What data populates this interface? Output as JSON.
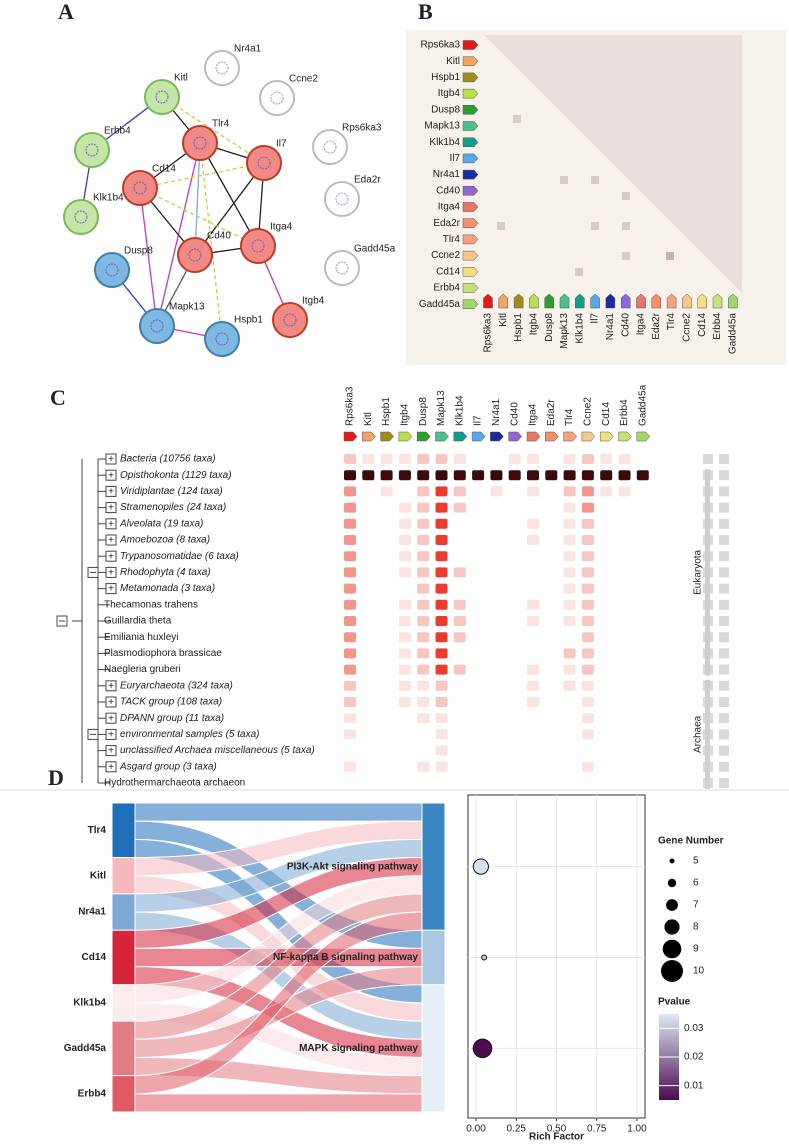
{
  "panels": {
    "A": "A",
    "B": "B",
    "C": "C",
    "D": "D"
  },
  "network": {
    "nodes": [
      {
        "label": "Nr4a1",
        "cluster": "none"
      },
      {
        "label": "Ccne2",
        "cluster": "none"
      },
      {
        "label": "Kitl",
        "cluster": "green"
      },
      {
        "label": "Tlr4",
        "cluster": "red"
      },
      {
        "label": "Il7",
        "cluster": "red"
      },
      {
        "label": "Rps6ka3",
        "cluster": "none"
      },
      {
        "label": "Erbb4",
        "cluster": "green"
      },
      {
        "label": "Cd14",
        "cluster": "red"
      },
      {
        "label": "Eda2r",
        "cluster": "none"
      },
      {
        "label": "Klk1b4",
        "cluster": "green"
      },
      {
        "label": "Cd40",
        "cluster": "red"
      },
      {
        "label": "Itga4",
        "cluster": "red"
      },
      {
        "label": "Gadd45a",
        "cluster": "none"
      },
      {
        "label": "Dusp8",
        "cluster": "blue"
      },
      {
        "label": "Mapk13",
        "cluster": "blue"
      },
      {
        "label": "Hspb1",
        "cluster": "blue"
      },
      {
        "label": "Itgb4",
        "cluster": "red"
      }
    ]
  },
  "genes": [
    {
      "name": "Rps6ka3",
      "color": "#e31a1c"
    },
    {
      "name": "Kitl",
      "color": "#f4a460"
    },
    {
      "name": "Hspb1",
      "color": "#a08c1e"
    },
    {
      "name": "Itgb4",
      "color": "#b8e04a"
    },
    {
      "name": "Dusp8",
      "color": "#2ca02c"
    },
    {
      "name": "Mapk13",
      "color": "#4ac18a"
    },
    {
      "name": "Klk1b4",
      "color": "#159a8c"
    },
    {
      "name": "Il7",
      "color": "#57a8e8"
    },
    {
      "name": "Nr4a1",
      "color": "#1a2c9e"
    },
    {
      "name": "Cd40",
      "color": "#8f66d6"
    },
    {
      "name": "Itga4",
      "color": "#e8746a"
    },
    {
      "name": "Eda2r",
      "color": "#f5906a"
    },
    {
      "name": "Tlr4",
      "color": "#f7a27e"
    },
    {
      "name": "Ccne2",
      "color": "#f8c888"
    },
    {
      "name": "Cd14",
      "color": "#f3df80"
    },
    {
      "name": "Erbb4",
      "color": "#c6e07a"
    },
    {
      "name": "Gadd45a",
      "color": "#9ed86a"
    }
  ],
  "profile": {
    "taxa": [
      {
        "name": "Bacteria (10756 taxa)",
        "group": true
      },
      {
        "name": "Opisthokonta (1129 taxa)",
        "group": true
      },
      {
        "name": "Viridiplantae (124 taxa)",
        "group": true
      },
      {
        "name": "Stramenopiles (24 taxa)",
        "group": true
      },
      {
        "name": "Alveolata (19 taxa)",
        "group": true
      },
      {
        "name": "Amoebozoa (8 taxa)",
        "group": true
      },
      {
        "name": "Trypanosomatidae (6 taxa)",
        "group": true
      },
      {
        "name": "Rhodophyta (4 taxa)",
        "group": true
      },
      {
        "name": "Metamonada (3 taxa)",
        "group": true
      },
      {
        "name": "Thecamonas trahens",
        "group": false
      },
      {
        "name": "Guillardia theta",
        "group": false
      },
      {
        "name": "Emiliania huxleyi",
        "group": false
      },
      {
        "name": "Plasmodiophora brassicae",
        "group": false
      },
      {
        "name": "Naegleria gruberi",
        "group": false
      },
      {
        "name": "Euryarchaeota (324 taxa)",
        "group": true
      },
      {
        "name": "TACK group (108 taxa)",
        "group": true
      },
      {
        "name": "DPANN group (11 taxa)",
        "group": true
      },
      {
        "name": "environmental samples (5 taxa)",
        "group": true
      },
      {
        "name": "unclassified Archaea miscellaneous (5 taxa)",
        "group": true
      },
      {
        "name": "Asgard group (3 taxa)",
        "group": true
      },
      {
        "name": "Hydrothermarchaeota archaeon",
        "group": false
      }
    ],
    "levels": [
      [
        2,
        1,
        1,
        1,
        2,
        2,
        1,
        0,
        0,
        1,
        1,
        0,
        1,
        2,
        1,
        1,
        0
      ],
      [
        5,
        5,
        5,
        5,
        5,
        5,
        5,
        5,
        5,
        5,
        5,
        5,
        5,
        5,
        5,
        5,
        5
      ],
      [
        3,
        0,
        1,
        0,
        2,
        4,
        2,
        0,
        1,
        0,
        1,
        0,
        2,
        3,
        1,
        1,
        0
      ],
      [
        3,
        0,
        0,
        1,
        2,
        4,
        2,
        0,
        0,
        0,
        0,
        0,
        1,
        3,
        0,
        0,
        0
      ],
      [
        3,
        0,
        0,
        1,
        2,
        4,
        0,
        0,
        0,
        0,
        1,
        0,
        1,
        2,
        0,
        0,
        0
      ],
      [
        3,
        0,
        0,
        1,
        2,
        4,
        0,
        0,
        0,
        0,
        1,
        0,
        1,
        2,
        0,
        0,
        0
      ],
      [
        3,
        0,
        0,
        1,
        2,
        4,
        0,
        0,
        0,
        0,
        0,
        0,
        1,
        2,
        0,
        0,
        0
      ],
      [
        3,
        0,
        0,
        1,
        2,
        4,
        2,
        0,
        0,
        0,
        0,
        0,
        1,
        2,
        0,
        0,
        0
      ],
      [
        3,
        0,
        0,
        0,
        2,
        4,
        0,
        0,
        0,
        0,
        0,
        0,
        1,
        2,
        0,
        0,
        0
      ],
      [
        3,
        0,
        0,
        1,
        2,
        4,
        2,
        0,
        0,
        0,
        1,
        0,
        1,
        2,
        0,
        0,
        0
      ],
      [
        3,
        0,
        0,
        1,
        2,
        4,
        2,
        0,
        0,
        0,
        1,
        0,
        1,
        2,
        0,
        0,
        0
      ],
      [
        3,
        0,
        0,
        1,
        2,
        4,
        2,
        0,
        0,
        0,
        0,
        0,
        0,
        2,
        0,
        0,
        0
      ],
      [
        3,
        0,
        0,
        1,
        2,
        4,
        0,
        0,
        0,
        0,
        0,
        0,
        2,
        2,
        0,
        0,
        0
      ],
      [
        3,
        0,
        0,
        1,
        2,
        4,
        2,
        0,
        0,
        0,
        1,
        0,
        1,
        2,
        0,
        0,
        0
      ],
      [
        2,
        0,
        0,
        1,
        1,
        2,
        0,
        0,
        0,
        0,
        1,
        0,
        1,
        1,
        0,
        0,
        0
      ],
      [
        2,
        0,
        0,
        1,
        1,
        2,
        0,
        0,
        0,
        0,
        1,
        0,
        0,
        1,
        0,
        0,
        0
      ],
      [
        1,
        0,
        0,
        0,
        1,
        1,
        0,
        0,
        0,
        0,
        0,
        0,
        0,
        1,
        0,
        0,
        0
      ],
      [
        1,
        0,
        0,
        0,
        0,
        1,
        0,
        0,
        0,
        0,
        0,
        0,
        0,
        1,
        0,
        0,
        0
      ],
      [
        0,
        0,
        0,
        0,
        0,
        1,
        0,
        0,
        0,
        0,
        0,
        0,
        0,
        0,
        0,
        0,
        0
      ],
      [
        1,
        0,
        0,
        0,
        1,
        1,
        0,
        0,
        0,
        0,
        0,
        0,
        0,
        1,
        0,
        0,
        0
      ],
      [
        0,
        0,
        0,
        0,
        0,
        0,
        0,
        0,
        0,
        0,
        0,
        0,
        0,
        0,
        0,
        0,
        0
      ]
    ],
    "domains": [
      {
        "name": "Eukaryota",
        "from": 1,
        "to": 13
      },
      {
        "name": "Archaea",
        "from": 14,
        "to": 20
      }
    ]
  },
  "sankey": {
    "genes": [
      {
        "name": "Tlr4",
        "color": "#1f6fba"
      },
      {
        "name": "Kitl",
        "color": "#f5b8bd"
      },
      {
        "name": "Nr4a1",
        "color": "#7ea9d4"
      },
      {
        "name": "Cd14",
        "color": "#d6253a"
      },
      {
        "name": "Klk1b4",
        "color": "#fdecee"
      },
      {
        "name": "Gadd45a",
        "color": "#e37b83"
      },
      {
        "name": "Erbb4",
        "color": "#e05b66"
      }
    ],
    "pathways": [
      {
        "name": "PI3K-Akt signaling pathway",
        "color": "#3b86c2"
      },
      {
        "name": "NF-kappa B signaling pathway",
        "color": "#a9c6e2"
      },
      {
        "name": "MAPK signaling pathway",
        "color": "#e6eff8"
      }
    ],
    "links": [
      [
        0,
        0
      ],
      [
        0,
        1
      ],
      [
        0,
        2
      ],
      [
        1,
        0
      ],
      [
        1,
        2
      ],
      [
        2,
        0
      ],
      [
        2,
        2
      ],
      [
        3,
        0
      ],
      [
        3,
        1
      ],
      [
        3,
        2
      ],
      [
        4,
        0
      ],
      [
        4,
        2
      ],
      [
        5,
        0
      ],
      [
        5,
        1
      ],
      [
        5,
        2
      ],
      [
        6,
        0
      ],
      [
        6,
        2
      ]
    ]
  },
  "chart_data": {
    "type": "scatter",
    "categories": [
      "PI3K-Akt signaling pathway",
      "NF-kappa B signaling pathway",
      "MAPK signaling pathway"
    ],
    "x": [
      0.03,
      0.05,
      0.04
    ],
    "sizes": [
      8,
      5,
      9
    ],
    "pvalues": [
      0.034,
      0.03,
      0.005
    ],
    "xlabel": "Rich Factor",
    "xlim": [
      -0.05,
      1.05
    ],
    "xticks": [
      {
        "value": 0,
        "label": "0.00"
      },
      {
        "value": 0.25,
        "label": "0.25"
      },
      {
        "value": 0.5,
        "label": "0.50"
      },
      {
        "value": 0.75,
        "label": "0.75"
      },
      {
        "value": 1,
        "label": "1.00"
      }
    ],
    "size_title": "Gene Number",
    "size_ticks": [
      5,
      6,
      7,
      8,
      9,
      10
    ],
    "color_title": "Pvalue",
    "color_lim": [
      0.005,
      0.035
    ],
    "color_ticks": [
      0.01,
      0.02,
      0.03
    ],
    "color_low": "#4a0c4e",
    "color_high": "#dde8f5",
    "grid": true
  }
}
